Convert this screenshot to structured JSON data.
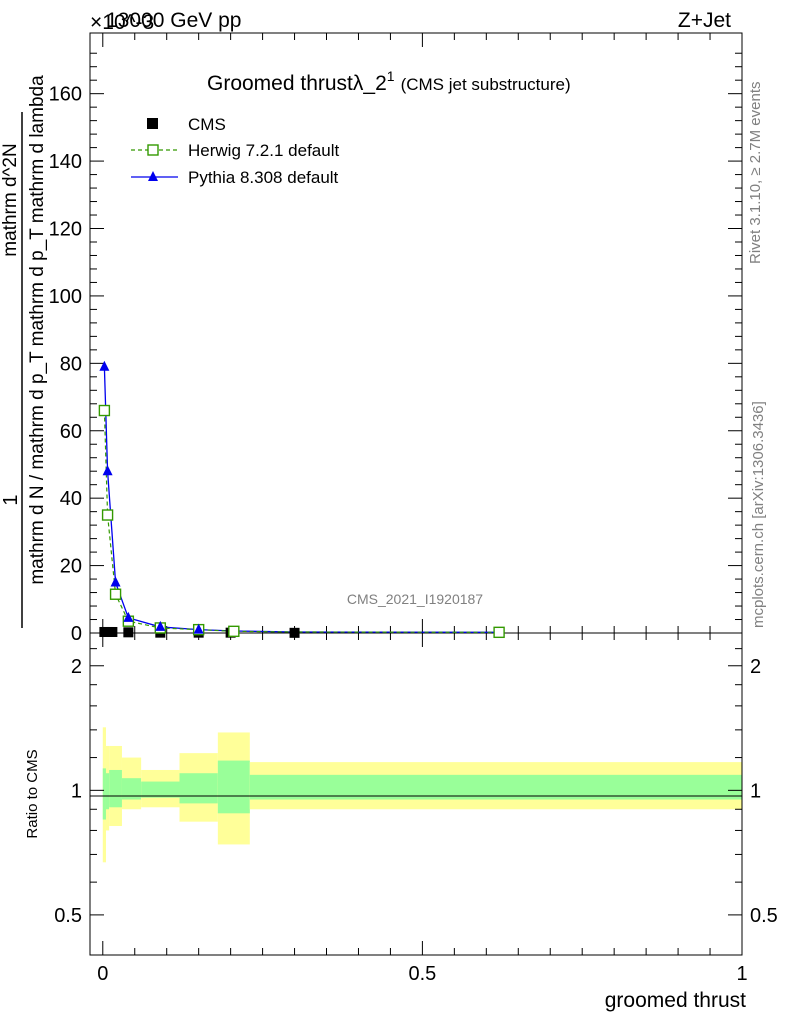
{
  "header": {
    "energy_label": "13000 GeV pp",
    "process_label": "Z+Jet",
    "multiplier": "×10^-3",
    "rivet_label": "Rivet 3.1.10, ≥ 2.7M events",
    "mcplots_label": "mcplots.cern.ch [arXiv:1306.3436]",
    "analysis_id": "CMS_2021_I1920187"
  },
  "title": {
    "main": "Groomed thrust",
    "lambda": "λ_2",
    "superscript": "1",
    "sub": "(CMS jet substructure)"
  },
  "legend": {
    "entries": [
      {
        "name": "CMS",
        "color": "#000000",
        "marker": "filled-square"
      },
      {
        "name": "Herwig 7.2.1 default",
        "color": "#339900",
        "marker": "open-square"
      },
      {
        "name": "Pythia 8.308 default",
        "color": "#0000ee",
        "marker": "filled-triangle"
      }
    ]
  },
  "axes": {
    "ylabel_top": "1",
    "ylabel_mid": "mathrm d N / mathrm d p_T mathrm d p_T mathrm d lambda",
    "ylabel_num": "mathrm d^2N",
    "ylabel_den": "mathrm d N / mathrm d p_T mathrm d p_T mathrm d lambda",
    "ratio_ylabel": "Ratio to CMS",
    "xlabel": "groomed thrust",
    "main_yticks": [
      "0",
      "20",
      "40",
      "60",
      "80",
      "100",
      "120",
      "140",
      "160"
    ],
    "ratio_yticks": [
      "0.5",
      "1",
      "2"
    ],
    "xticks": [
      "0",
      "0.5",
      "1"
    ]
  },
  "chart_data": {
    "type": "line",
    "x_range": [
      -0.02,
      1.0
    ],
    "y_range": [
      0,
      178
    ],
    "y_scale_note": "×10^-3",
    "series": [
      {
        "name": "CMS",
        "x": [
          0.0025,
          0.0075,
          0.015,
          0.04,
          0.09,
          0.15,
          0.2,
          0.3,
          0.62
        ],
        "y": [
          0.3,
          0.3,
          0.3,
          0.2,
          0.1,
          0.1,
          0.1,
          0.05,
          0.05
        ]
      },
      {
        "name": "Herwig 7.2.1 default",
        "x": [
          0.0025,
          0.0075,
          0.02,
          0.04,
          0.09,
          0.15,
          0.205,
          0.3,
          0.62
        ],
        "y": [
          66,
          35,
          11.5,
          3.5,
          1.5,
          1.0,
          0.5,
          0.3,
          0.2
        ]
      },
      {
        "name": "Pythia 8.308 default",
        "x": [
          0.0025,
          0.0075,
          0.02,
          0.04,
          0.09,
          0.15,
          0.205,
          0.3,
          0.62
        ],
        "y": [
          79,
          48,
          15,
          4.5,
          1.8,
          1.0,
          0.6,
          0.3,
          0.2
        ]
      }
    ],
    "ratio": {
      "y_range": [
        0.4,
        2.4
      ],
      "scale": "log",
      "bands": [
        {
          "x0": 0.0,
          "x1": 0.005,
          "y_lo": 0.67,
          "y_hi": 1.42,
          "g_lo": 0.85,
          "g_hi": 1.13
        },
        {
          "x0": 0.005,
          "x1": 0.01,
          "y_lo": 0.8,
          "y_hi": 1.28,
          "g_lo": 0.9,
          "g_hi": 1.1
        },
        {
          "x0": 0.01,
          "x1": 0.03,
          "y_lo": 0.82,
          "y_hi": 1.28,
          "g_lo": 0.91,
          "g_hi": 1.12
        },
        {
          "x0": 0.03,
          "x1": 0.06,
          "y_lo": 0.9,
          "y_hi": 1.2,
          "g_lo": 0.95,
          "g_hi": 1.07
        },
        {
          "x0": 0.06,
          "x1": 0.12,
          "y_lo": 0.91,
          "y_hi": 1.12,
          "g_lo": 0.96,
          "g_hi": 1.05
        },
        {
          "x0": 0.12,
          "x1": 0.18,
          "y_lo": 0.84,
          "y_hi": 1.23,
          "g_lo": 0.93,
          "g_hi": 1.1
        },
        {
          "x0": 0.18,
          "x1": 0.23,
          "y_lo": 0.74,
          "y_hi": 1.38,
          "g_lo": 0.88,
          "g_hi": 1.18
        },
        {
          "x0": 0.23,
          "x1": 1.0,
          "y_lo": 0.9,
          "y_hi": 1.17,
          "g_lo": 0.95,
          "g_hi": 1.09
        }
      ]
    },
    "colors": {
      "band_outer": "#ffff99",
      "band_inner": "#99ff99"
    }
  }
}
